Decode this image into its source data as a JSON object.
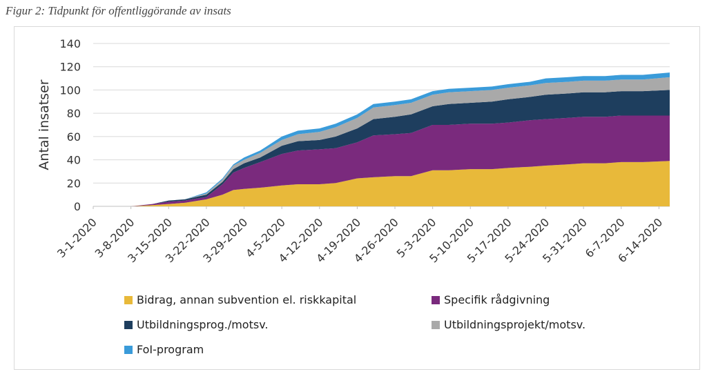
{
  "caption": "Figur 2: Tidpunkt för offentliggörande av insats",
  "chart_data": {
    "type": "area",
    "stacked": true,
    "ylabel": "Antal insatser",
    "ylim": [
      0,
      140
    ],
    "yticks": [
      0,
      20,
      40,
      60,
      80,
      100,
      120,
      140
    ],
    "xlim": [
      "2020-03-01",
      "2020-06-16"
    ],
    "xtick_labels": [
      "3-1-2020",
      "3-8-2020",
      "3-15-2020",
      "3-22-2020",
      "3-29-2020",
      "4-5-2020",
      "4-12-2020",
      "4-19-2020",
      "4-26-2020",
      "5-3-2020",
      "5-10-2020",
      "5-17-2020",
      "5-24-2020",
      "5-31-2020",
      "6-7-2020",
      "6-14-2020"
    ],
    "grid": "horizontal",
    "legend_position": "bottom",
    "x": [
      "2020-03-01",
      "2020-03-08",
      "2020-03-12",
      "2020-03-15",
      "2020-03-18",
      "2020-03-22",
      "2020-03-25",
      "2020-03-27",
      "2020-03-29",
      "2020-04-01",
      "2020-04-05",
      "2020-04-08",
      "2020-04-12",
      "2020-04-15",
      "2020-04-19",
      "2020-04-22",
      "2020-04-26",
      "2020-04-29",
      "2020-05-03",
      "2020-05-06",
      "2020-05-10",
      "2020-05-14",
      "2020-05-17",
      "2020-05-21",
      "2020-05-24",
      "2020-05-28",
      "2020-05-31",
      "2020-06-04",
      "2020-06-07",
      "2020-06-11",
      "2020-06-16"
    ],
    "series": [
      {
        "name": "Bidrag, annan subvention el. riskkapital",
        "color": "#E8B93A",
        "values": [
          0,
          0,
          1,
          2,
          3,
          6,
          10,
          14,
          15,
          16,
          18,
          19,
          19,
          20,
          24,
          25,
          26,
          26,
          31,
          31,
          32,
          32,
          33,
          34,
          35,
          36,
          37,
          37,
          38,
          38,
          39
        ]
      },
      {
        "name": "Specifik rådgivning",
        "color": "#7A2A7D",
        "values": [
          0,
          0,
          1,
          2,
          2,
          2,
          9,
          15,
          18,
          22,
          27,
          29,
          30,
          30,
          31,
          36,
          36,
          37,
          39,
          39,
          39,
          39,
          39,
          40,
          40,
          40,
          40,
          40,
          40,
          40,
          39
        ]
      },
      {
        "name": "Utbildningsprog./motsv.",
        "color": "#1E3E5E",
        "values": [
          0,
          0,
          0,
          1,
          1,
          2,
          2,
          3,
          4,
          4,
          7,
          8,
          8,
          10,
          12,
          14,
          15,
          16,
          16,
          18,
          18,
          19,
          20,
          20,
          21,
          21,
          21,
          21,
          21,
          21,
          22
        ]
      },
      {
        "name": "Utbildningsprojekt/motsv.",
        "color": "#A9A9A9",
        "values": [
          0,
          0,
          0,
          0,
          0,
          1,
          2,
          3,
          3,
          4,
          5,
          6,
          7,
          8,
          9,
          10,
          10,
          10,
          10,
          10,
          10,
          10,
          10,
          10,
          10,
          10,
          10,
          10,
          10,
          10,
          11
        ]
      },
      {
        "name": "FoI-program",
        "color": "#3A9BD9",
        "values": [
          0,
          0,
          0,
          0,
          0,
          1,
          1,
          1,
          2,
          2,
          3,
          3,
          3,
          3,
          3,
          3,
          3,
          3,
          3,
          3,
          3,
          3,
          3,
          3,
          4,
          4,
          4,
          4,
          4,
          4,
          4
        ]
      }
    ]
  }
}
